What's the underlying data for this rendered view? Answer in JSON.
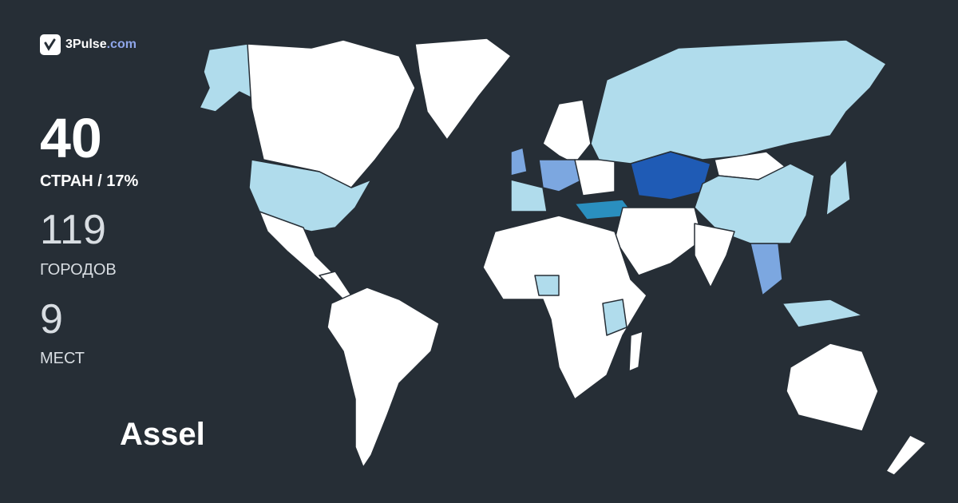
{
  "logo": {
    "brand": "3Pulse",
    "domain": ".com",
    "icon": "check-pulse-icon"
  },
  "stats": {
    "countries": {
      "value": "40",
      "label": "СТРАН / 17%"
    },
    "cities": {
      "value": "119",
      "label": "ГОРОДОВ"
    },
    "places": {
      "value": "9",
      "label": "МЕСТ"
    }
  },
  "user": {
    "name": "Assel"
  },
  "colors": {
    "background": "#262e36",
    "unvisited": "#ffffff",
    "visited_low": "#b0dcec",
    "visited_mid": "#7ca7e0",
    "visited_high": "#1f5bb5",
    "visited_teal": "#2a8fbf"
  }
}
